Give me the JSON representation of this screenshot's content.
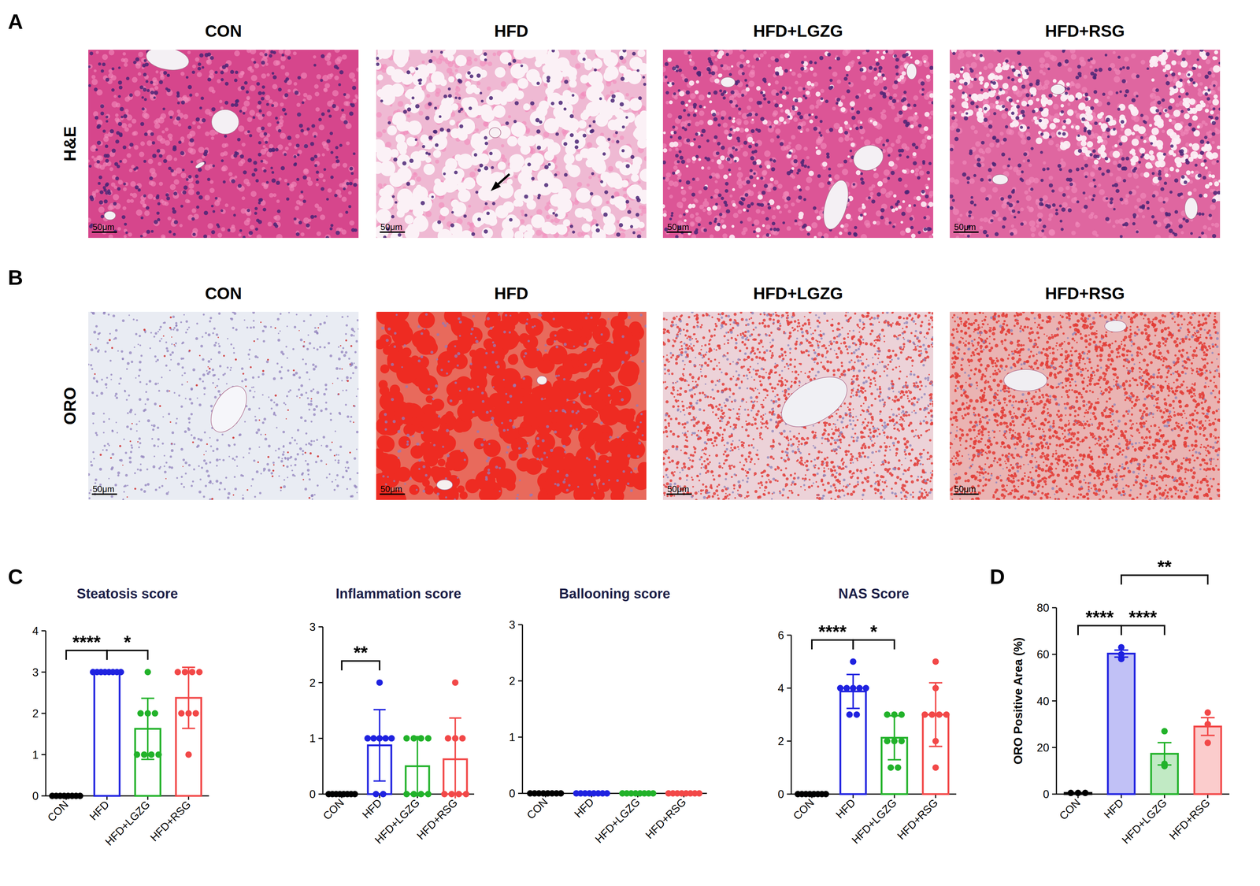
{
  "figure": {
    "panels": [
      {
        "letter": "A",
        "row_label": "H&E",
        "columns": [
          "CON",
          "HFD",
          "HFD+LGZG",
          "HFD+RSG"
        ]
      },
      {
        "letter": "B",
        "row_label": "ORO",
        "columns": [
          "CON",
          "HFD",
          "HFD+LGZG",
          "HFD+RSG"
        ]
      },
      {
        "letter": "C"
      },
      {
        "letter": "D"
      }
    ],
    "scale_bar": "50μm"
  },
  "chart_data": [
    {
      "type": "bar",
      "title": "Steatosis score",
      "categories": [
        "CON",
        "HFD",
        "HFD+LGZG",
        "HFD+RSG"
      ],
      "colors": [
        "#000000",
        "#1f22e0",
        "#22b22a",
        "#f24848"
      ],
      "values": [
        0,
        3,
        1.625,
        2.375
      ],
      "errors": [
        0,
        0,
        0.74,
        0.74
      ],
      "points": [
        [
          0,
          0,
          0,
          0,
          0,
          0,
          0,
          0
        ],
        [
          3,
          3,
          3,
          3,
          3,
          3,
          3,
          3
        ],
        [
          1,
          1,
          1,
          1,
          2,
          2,
          2,
          3
        ],
        [
          1,
          2,
          2,
          2,
          3,
          3,
          3,
          3
        ]
      ],
      "ylim": [
        0,
        4
      ],
      "yticks": [
        0,
        1,
        2,
        3,
        4
      ],
      "annotations": [
        {
          "from": 0,
          "to": 1,
          "text": "****"
        },
        {
          "from": 1,
          "to": 2,
          "text": "*"
        }
      ]
    },
    {
      "type": "bar",
      "title": "Inflammation score",
      "categories": [
        "CON",
        "HFD",
        "HFD+LGZG",
        "HFD+RSG"
      ],
      "colors": [
        "#000000",
        "#1f22e0",
        "#22b22a",
        "#f24848"
      ],
      "values": [
        0,
        0.875,
        0.5,
        0.625
      ],
      "errors": [
        0,
        0.64,
        0.53,
        0.74
      ],
      "points": [
        [
          0,
          0,
          0,
          0,
          0,
          0,
          0,
          0
        ],
        [
          2,
          1,
          1,
          1,
          1,
          1,
          0,
          0
        ],
        [
          1,
          1,
          1,
          1,
          0,
          0,
          0,
          0
        ],
        [
          2,
          1,
          1,
          1,
          0,
          0,
          0,
          0
        ]
      ],
      "ylim": [
        0,
        3
      ],
      "yticks": [
        0,
        1,
        2,
        3
      ],
      "annotations": [
        {
          "from": 0,
          "to": 1,
          "text": "**"
        }
      ]
    },
    {
      "type": "bar",
      "title": "Ballooning score",
      "categories": [
        "CON",
        "HFD",
        "HFD+LGZG",
        "HFD+RSG"
      ],
      "colors": [
        "#000000",
        "#1f22e0",
        "#22b22a",
        "#f24848"
      ],
      "values": [
        0,
        0,
        0,
        0
      ],
      "errors": [
        0,
        0,
        0,
        0
      ],
      "points": [
        [
          0,
          0,
          0,
          0,
          0,
          0,
          0,
          0
        ],
        [
          0,
          0,
          0,
          0,
          0,
          0,
          0,
          0
        ],
        [
          0,
          0,
          0,
          0,
          0,
          0,
          0,
          0
        ],
        [
          0,
          0,
          0,
          0,
          0,
          0,
          0,
          0
        ]
      ],
      "ylim": [
        0,
        3
      ],
      "yticks": [
        0,
        1,
        2,
        3
      ],
      "annotations": []
    },
    {
      "type": "bar",
      "title": "NAS Score",
      "categories": [
        "CON",
        "HFD",
        "HFD+LGZG",
        "HFD+RSG"
      ],
      "colors": [
        "#000000",
        "#1f22e0",
        "#22b22a",
        "#f24848"
      ],
      "values": [
        0,
        3.875,
        2.125,
        3
      ],
      "errors": [
        0,
        0.64,
        0.83,
        1.2
      ],
      "points": [
        [
          0,
          0,
          0,
          0,
          0,
          0,
          0,
          0
        ],
        [
          5,
          4,
          4,
          4,
          4,
          4,
          3,
          3
        ],
        [
          3,
          3,
          3,
          2,
          2,
          2,
          1,
          1
        ],
        [
          5,
          4,
          3,
          3,
          3,
          3,
          2,
          1
        ]
      ],
      "ylim": [
        0,
        6
      ],
      "yticks": [
        0,
        2,
        4,
        6
      ],
      "annotations": [
        {
          "from": 0,
          "to": 1,
          "text": "****"
        },
        {
          "from": 1,
          "to": 2,
          "text": "*"
        }
      ]
    },
    {
      "type": "bar",
      "y_label": "ORO Positive Area (%)",
      "categories": [
        "CON",
        "HFD",
        "HFD+LGZG",
        "HFD+RSG"
      ],
      "colors": [
        "#000000",
        "#1f22e0",
        "#22b22a",
        "#f24848"
      ],
      "values": [
        0.5,
        60.3,
        17.3,
        29
      ],
      "errors": [
        0,
        1.5,
        4.8,
        3.8
      ],
      "points": [
        [
          0.5,
          0.5,
          0.5
        ],
        [
          58,
          60,
          63
        ],
        [
          13,
          12,
          27
        ],
        [
          35,
          30,
          22
        ]
      ],
      "ylim": [
        0,
        80
      ],
      "yticks": [
        0,
        20,
        40,
        60,
        80
      ],
      "annotations": [
        {
          "from": 0,
          "to": 1,
          "text": "****"
        },
        {
          "from": 1,
          "to": 2,
          "text": "****"
        },
        {
          "from": 1,
          "to": 3,
          "text": "**"
        }
      ]
    }
  ]
}
